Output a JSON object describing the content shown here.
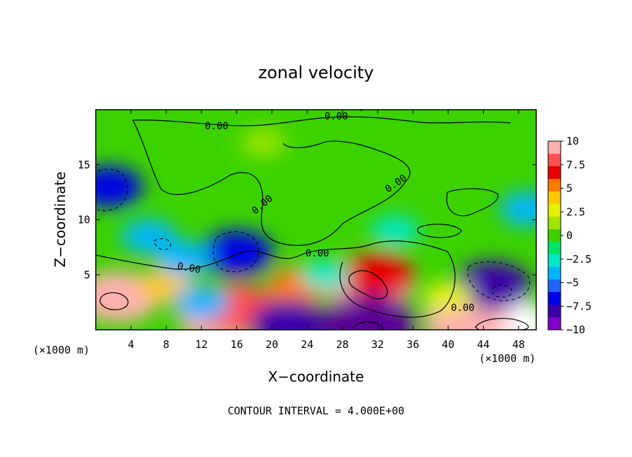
{
  "chart_data": {
    "type": "heatmap",
    "title": "zonal velocity",
    "xlabel": "X−coordinate",
    "ylabel": "Z−coordinate",
    "x_unit": "(×1000 m)",
    "x_ticks": [
      4,
      8,
      12,
      16,
      20,
      24,
      28,
      32,
      36,
      40,
      44,
      48
    ],
    "y_ticks": [
      5,
      10,
      15
    ],
    "xlim": [
      0,
      50
    ],
    "ylim": [
      0,
      20
    ],
    "colorbar": {
      "ticks": [
        "10",
        "7.5",
        "5",
        "2.5",
        "0",
        "−2.5",
        "−5",
        "−7.5",
        "−10"
      ],
      "range": [
        -10,
        10
      ],
      "colors": [
        "#ffb0b0",
        "#ff5050",
        "#e80000",
        "#ff7a00",
        "#ffc800",
        "#e6f000",
        "#a0e600",
        "#3cd200",
        "#00e664",
        "#00e6c8",
        "#00b4ff",
        "#1e64ff",
        "#0000e6",
        "#3c00aa",
        "#8200c8"
      ]
    },
    "field_features": [
      {
        "x": 2.5,
        "z": 3,
        "value": 9
      },
      {
        "x": 14,
        "z": 1.2,
        "value": 9
      },
      {
        "x": 16,
        "z": 2,
        "value": 8
      },
      {
        "x": 31,
        "z": 4.2,
        "value": 10
      },
      {
        "x": 32,
        "z": 5,
        "value": 7
      },
      {
        "x": 46,
        "z": 0.5,
        "value": 11
      },
      {
        "x": 42,
        "z": 0.8,
        "value": 9
      },
      {
        "x": 23,
        "z": 4,
        "value": 5
      },
      {
        "x": 8,
        "z": 4,
        "value": 4
      },
      {
        "x": 16,
        "z": 7,
        "value": -7
      },
      {
        "x": 1.5,
        "z": 13,
        "value": -6
      },
      {
        "x": 45,
        "z": 4,
        "value": -8
      },
      {
        "x": 49,
        "z": 11,
        "value": -4
      },
      {
        "x": 22,
        "z": 0.5,
        "value": -8
      },
      {
        "x": 31,
        "z": 0.5,
        "value": -11
      },
      {
        "x": 12,
        "z": 2.5,
        "value": -4
      },
      {
        "x": 34,
        "z": 9,
        "value": -3
      },
      {
        "x": 10,
        "z": 6.5,
        "value": -4
      },
      {
        "x": 26,
        "z": 5,
        "value": -3
      },
      {
        "x": 19,
        "z": 17,
        "value": 2
      },
      {
        "x": 40,
        "z": 3,
        "value": 3
      },
      {
        "x": 6,
        "z": 8.5,
        "value": -4
      }
    ],
    "contour_labels": [
      "0.00",
      "0.00",
      "0.00",
      "0.00",
      "0.00",
      "0.00",
      "0.00"
    ],
    "footer": "CONTOUR INTERVAL = 4.000E+00"
  }
}
